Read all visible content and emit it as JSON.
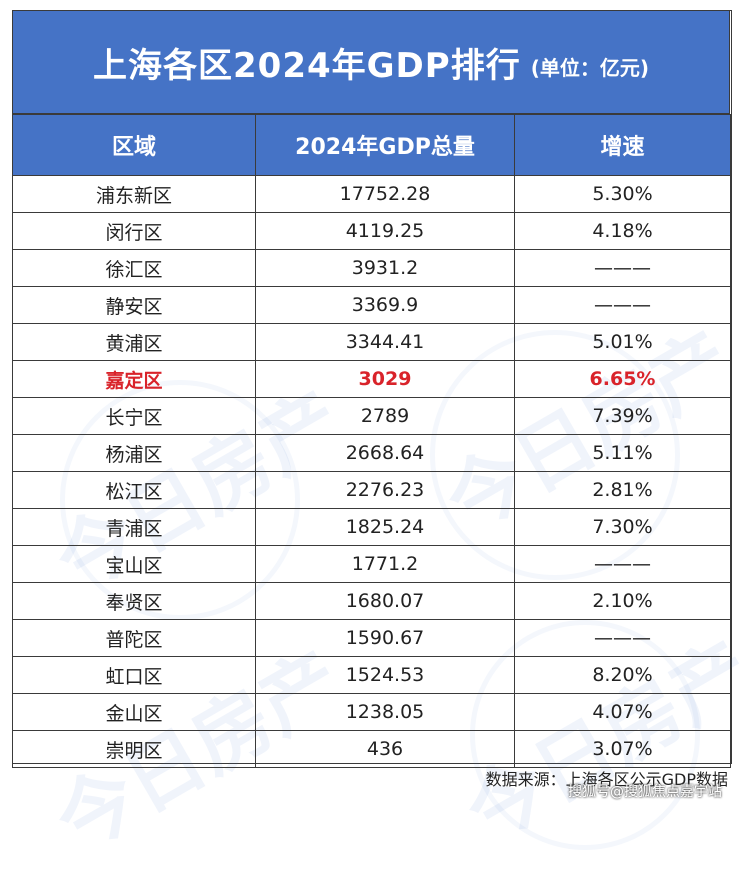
{
  "title": {
    "main": "上海各区2024年GDP排行",
    "unit": "(单位：亿元)"
  },
  "table": {
    "headers": [
      "区域",
      "2024年GDP总量",
      "增速"
    ],
    "rows": [
      {
        "district": "浦东新区",
        "gdp": "17752.28",
        "growth": "5.30%"
      },
      {
        "district": "闵行区",
        "gdp": "4119.25",
        "growth": "4.18%"
      },
      {
        "district": "徐汇区",
        "gdp": "3931.2",
        "growth": "———"
      },
      {
        "district": "静安区",
        "gdp": "3369.9",
        "growth": "———"
      },
      {
        "district": "黄浦区",
        "gdp": "3344.41",
        "growth": "5.01%"
      },
      {
        "district": "嘉定区",
        "gdp": "3029",
        "growth": "6.65%"
      },
      {
        "district": "长宁区",
        "gdp": "2789",
        "growth": "7.39%"
      },
      {
        "district": "杨浦区",
        "gdp": "2668.64",
        "growth": "5.11%"
      },
      {
        "district": "松江区",
        "gdp": "2276.23",
        "growth": "2.81%"
      },
      {
        "district": "青浦区",
        "gdp": "1825.24",
        "growth": "7.30%"
      },
      {
        "district": "宝山区",
        "gdp": "1771.2",
        "growth": "———"
      },
      {
        "district": "奉贤区",
        "gdp": "1680.07",
        "growth": "2.10%"
      },
      {
        "district": "普陀区",
        "gdp": "1590.67",
        "growth": "———"
      },
      {
        "district": "虹口区",
        "gdp": "1524.53",
        "growth": "8.20%"
      },
      {
        "district": "金山区",
        "gdp": "1238.05",
        "growth": "4.07%"
      },
      {
        "district": "崇明区",
        "gdp": "436",
        "growth": "3.07%"
      }
    ],
    "highlight_district": "嘉定区"
  },
  "source": "数据来源：上海各区公示GDP数据",
  "credit": "搜狐号@搜狐焦点嘉宇站",
  "watermark": "今日房产",
  "colors": {
    "header_blue": "#4573c6",
    "highlight_red": "#d9232a"
  }
}
